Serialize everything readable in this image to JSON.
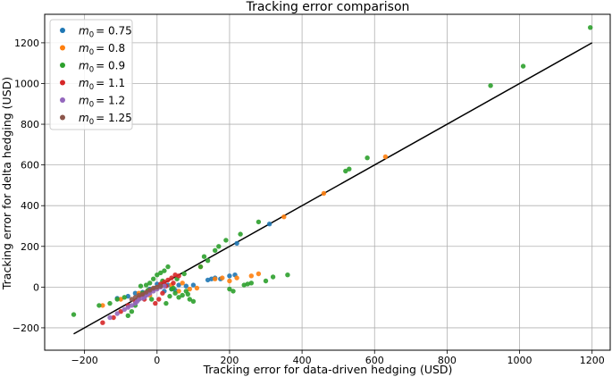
{
  "chart_data": {
    "type": "scatter",
    "title": "Tracking error comparison",
    "xlabel": "Tracking error for data-driven hedging (USD)",
    "ylabel": "Tracking error for delta hedging (USD)",
    "xlim": [
      -310,
      1250
    ],
    "ylim": [
      -310,
      1340
    ],
    "xticks": [
      -200,
      0,
      200,
      400,
      600,
      800,
      1000,
      1200
    ],
    "yticks": [
      -200,
      0,
      200,
      400,
      600,
      800,
      1000,
      1200
    ],
    "grid": true,
    "legend_position": "top-left",
    "reference_line": {
      "x": [
        -230,
        1200
      ],
      "y": [
        -230,
        1200
      ],
      "color": "#000000"
    },
    "series": [
      {
        "name": "m_0 = 0.75",
        "label_base": "m",
        "label_sub": "0",
        "label_value": "= 0.75",
        "color": "#1f77b4",
        "points": [
          [
            -110,
            -55
          ],
          [
            -80,
            -45
          ],
          [
            -60,
            -30
          ],
          [
            -40,
            -25
          ],
          [
            -20,
            -10
          ],
          [
            -5,
            -5
          ],
          [
            10,
            5
          ],
          [
            30,
            10
          ],
          [
            60,
            10
          ],
          [
            80,
            5
          ],
          [
            100,
            10
          ],
          [
            140,
            35
          ],
          [
            150,
            40
          ],
          [
            160,
            45
          ],
          [
            175,
            40
          ],
          [
            200,
            55
          ],
          [
            215,
            60
          ],
          [
            220,
            215
          ],
          [
            310,
            310
          ],
          [
            20,
            -20
          ],
          [
            40,
            -10
          ],
          [
            -30,
            -40
          ],
          [
            0,
            15
          ],
          [
            50,
            -15
          ]
        ]
      },
      {
        "name": "m_0 = 0.8",
        "label_base": "m",
        "label_sub": "0",
        "label_value": "= 0.8",
        "color": "#ff7f0e",
        "points": [
          [
            -150,
            -90
          ],
          [
            -100,
            -60
          ],
          [
            -50,
            -30
          ],
          [
            0,
            -5
          ],
          [
            40,
            10
          ],
          [
            60,
            -20
          ],
          [
            90,
            -10
          ],
          [
            110,
            -5
          ],
          [
            160,
            40
          ],
          [
            200,
            30
          ],
          [
            220,
            45
          ],
          [
            260,
            55
          ],
          [
            280,
            65
          ],
          [
            350,
            345
          ],
          [
            460,
            460
          ],
          [
            630,
            640
          ],
          [
            120,
            100
          ],
          [
            -20,
            -40
          ],
          [
            70,
            20
          ],
          [
            180,
            45
          ]
        ]
      },
      {
        "name": "m_0 = 0.9",
        "label_base": "m",
        "label_sub": "0",
        "label_value": "= 0.9",
        "color": "#2ca02c",
        "points": [
          [
            -230,
            -135
          ],
          [
            -160,
            -90
          ],
          [
            -130,
            -80
          ],
          [
            -110,
            -60
          ],
          [
            -90,
            -50
          ],
          [
            -80,
            -140
          ],
          [
            -70,
            -120
          ],
          [
            -60,
            -90
          ],
          [
            -50,
            -60
          ],
          [
            -40,
            -30
          ],
          [
            -30,
            10
          ],
          [
            -20,
            20
          ],
          [
            -10,
            40
          ],
          [
            0,
            60
          ],
          [
            10,
            70
          ],
          [
            20,
            80
          ],
          [
            30,
            100
          ],
          [
            40,
            -10
          ],
          [
            50,
            -30
          ],
          [
            60,
            -50
          ],
          [
            70,
            -40
          ],
          [
            80,
            -20
          ],
          [
            90,
            -60
          ],
          [
            100,
            -70
          ],
          [
            120,
            100
          ],
          [
            130,
            150
          ],
          [
            140,
            130
          ],
          [
            160,
            180
          ],
          [
            170,
            200
          ],
          [
            190,
            230
          ],
          [
            200,
            -10
          ],
          [
            210,
            -20
          ],
          [
            230,
            260
          ],
          [
            240,
            10
          ],
          [
            250,
            15
          ],
          [
            260,
            20
          ],
          [
            280,
            320
          ],
          [
            300,
            30
          ],
          [
            320,
            50
          ],
          [
            360,
            60
          ],
          [
            520,
            570
          ],
          [
            530,
            580
          ],
          [
            580,
            635
          ],
          [
            920,
            990
          ],
          [
            1010,
            1085
          ],
          [
            1195,
            1275
          ],
          [
            -15,
            -60
          ],
          [
            25,
            -80
          ],
          [
            45,
            -5
          ],
          [
            -45,
            5
          ],
          [
            15,
            30
          ],
          [
            -25,
            -15
          ],
          [
            55,
            40
          ],
          [
            75,
            65
          ],
          [
            85,
            -35
          ],
          [
            35,
            -45
          ]
        ]
      },
      {
        "name": "m_0 = 1.1",
        "label_base": "m",
        "label_sub": "0",
        "label_value": "= 1.1",
        "color": "#d62728",
        "points": [
          [
            -150,
            -175
          ],
          [
            -120,
            -150
          ],
          [
            -100,
            -120
          ],
          [
            -80,
            -90
          ],
          [
            -60,
            -70
          ],
          [
            -50,
            -50
          ],
          [
            -40,
            -40
          ],
          [
            -30,
            -30
          ],
          [
            -20,
            -20
          ],
          [
            -10,
            -10
          ],
          [
            0,
            0
          ],
          [
            10,
            15
          ],
          [
            20,
            25
          ],
          [
            30,
            35
          ],
          [
            40,
            45
          ],
          [
            50,
            60
          ],
          [
            60,
            55
          ],
          [
            -5,
            -80
          ],
          [
            5,
            -60
          ],
          [
            15,
            -30
          ],
          [
            -35,
            -60
          ],
          [
            25,
            5
          ],
          [
            45,
            20
          ]
        ]
      },
      {
        "name": "m_0 = 1.2",
        "label_base": "m",
        "label_sub": "0",
        "label_value": "= 1.2",
        "color": "#9467bd",
        "points": [
          [
            -130,
            -150
          ],
          [
            -110,
            -130
          ],
          [
            -90,
            -110
          ],
          [
            -80,
            -100
          ],
          [
            -70,
            -90
          ],
          [
            -60,
            -80
          ],
          [
            -55,
            -70
          ],
          [
            -50,
            -60
          ],
          [
            -40,
            -55
          ],
          [
            -35,
            -50
          ],
          [
            -30,
            -40
          ],
          [
            -25,
            -35
          ],
          [
            -20,
            -30
          ],
          [
            -10,
            -20
          ],
          [
            0,
            -10
          ],
          [
            10,
            0
          ],
          [
            20,
            5
          ]
        ]
      },
      {
        "name": "m_0 = 1.25",
        "label_base": "m",
        "label_sub": "0",
        "label_value": "= 1.25",
        "color": "#8c564b",
        "points": [
          [
            -70,
            -60
          ],
          [
            -60,
            -50
          ],
          [
            -50,
            -40
          ],
          [
            -40,
            -35
          ],
          [
            -30,
            -25
          ],
          [
            -20,
            -15
          ],
          [
            -10,
            -5
          ],
          [
            0,
            0
          ],
          [
            10,
            5
          ]
        ]
      }
    ]
  }
}
